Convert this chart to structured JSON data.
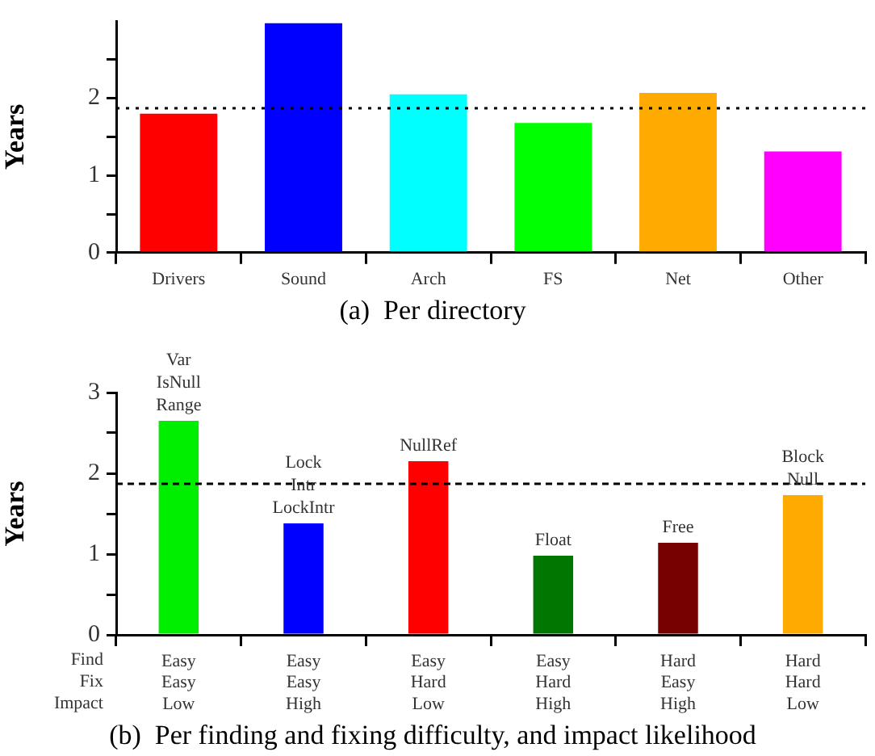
{
  "chart_data": [
    {
      "type": "bar",
      "title": "(a)  Per directory",
      "ylabel": "Years",
      "categories": [
        "Drivers",
        "Sound",
        "Arch",
        "FS",
        "Net",
        "Other"
      ],
      "values": [
        1.8,
        2.97,
        2.05,
        1.68,
        2.07,
        1.31
      ],
      "colors": [
        "#ff0000",
        "#0000ff",
        "#00ffff",
        "#00ff00",
        "#ffaa00",
        "#ff00ff"
      ],
      "ylim": [
        0,
        3
      ],
      "yticks": [
        0,
        {
          "value": 0.5,
          "label": null
        },
        1,
        {
          "value": 1.5,
          "label": null
        },
        2,
        {
          "value": 2.5,
          "label": null
        }
      ],
      "ref_lines": [
        {
          "axis": "y",
          "value": 1.87,
          "label": null,
          "color": "#000000",
          "line_style": "dotted"
        }
      ],
      "grid": false,
      "legend": false
    },
    {
      "type": "bar",
      "title": "(b)  Per finding and fixing difficulty, and impact likelihood",
      "ylabel": "Years",
      "categories": [
        "Easy\nEasy\nLow",
        "Easy\nEasy\nHigh",
        "Easy\nHard\nLow",
        "Easy\nHard\nHigh",
        "Hard\nEasy\nHigh",
        "Hard\nHard\nLow"
      ],
      "values": [
        2.65,
        1.38,
        2.15,
        0.98,
        1.14,
        1.73
      ],
      "colors": [
        "#00ee00",
        "#0000ff",
        "#ff0000",
        "#007700",
        "#770000",
        "#ffaa00"
      ],
      "ylim": [
        0,
        3
      ],
      "yticks": [
        0,
        {
          "value": 0.5,
          "label": null
        },
        1,
        {
          "value": 1.5,
          "label": null
        },
        2,
        {
          "value": 2.5,
          "label": null
        },
        3
      ],
      "ref_lines": [
        {
          "axis": "y",
          "value": 1.87,
          "label": null,
          "color": "#000000",
          "line_style": "dashed"
        }
      ],
      "annotations": [
        {
          "text": "Var\nIsNull\nRange",
          "x": "Easy\nEasy\nLow",
          "y": 2.65
        },
        {
          "text": "Lock\nIntr\nLockIntr",
          "x": "Easy\nEasy\nHigh",
          "y": 1.38
        },
        {
          "text": "NullRef",
          "x": "Easy\nHard\nLow",
          "y": 2.15
        },
        {
          "text": "Float",
          "x": "Easy\nHard\nHigh",
          "y": 0.98
        },
        {
          "text": "Free",
          "x": "Hard\nEasy\nHigh",
          "y": 1.14
        },
        {
          "text": "Block\nNull",
          "x": "Hard\nHard\nLow",
          "y": 1.73
        },
        "Find\nFix\nImpact"
      ],
      "grid": false,
      "legend": false
    }
  ]
}
